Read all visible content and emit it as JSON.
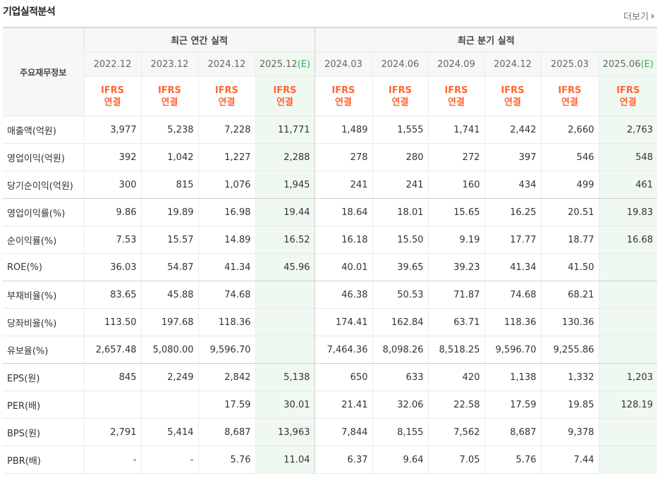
{
  "header": {
    "title": "기업실적분석",
    "more_label": "더보기"
  },
  "table": {
    "row_header": "주요재무정보",
    "groups": {
      "annual": "최근 연간 실적",
      "quarterly": "최근 분기 실적"
    },
    "periods": [
      {
        "label": "2022.12",
        "est": ""
      },
      {
        "label": "2023.12",
        "est": ""
      },
      {
        "label": "2024.12",
        "est": ""
      },
      {
        "label": "2025.12",
        "est": "(E)"
      },
      {
        "label": "2024.03",
        "est": ""
      },
      {
        "label": "2024.06",
        "est": ""
      },
      {
        "label": "2024.09",
        "est": ""
      },
      {
        "label": "2024.12",
        "est": ""
      },
      {
        "label": "2025.03",
        "est": ""
      },
      {
        "label": "2025.06",
        "est": "(E)"
      }
    ],
    "ifrs": {
      "line1": "IFRS",
      "line2": "연결"
    },
    "rows": [
      {
        "label": "매출액(억원)",
        "cells": [
          "3,977",
          "5,238",
          "7,228",
          "11,771",
          "1,489",
          "1,555",
          "1,741",
          "2,442",
          "2,660",
          "2,763"
        ]
      },
      {
        "label": "영업이익(억원)",
        "cells": [
          "392",
          "1,042",
          "1,227",
          "2,288",
          "278",
          "280",
          "272",
          "397",
          "546",
          "548"
        ]
      },
      {
        "label": "당기순이익(억원)",
        "cells": [
          "300",
          "815",
          "1,076",
          "1,945",
          "241",
          "241",
          "160",
          "434",
          "499",
          "461"
        ]
      },
      {
        "label": "영업이익률(%)",
        "cells": [
          "9.86",
          "19.89",
          "16.98",
          "19.44",
          "18.64",
          "18.01",
          "15.65",
          "16.25",
          "20.51",
          "19.83"
        ]
      },
      {
        "label": "순이익률(%)",
        "cells": [
          "7.53",
          "15.57",
          "14.89",
          "16.52",
          "16.18",
          "15.50",
          "9.19",
          "17.77",
          "18.77",
          "16.68"
        ]
      },
      {
        "label": "ROE(%)",
        "cells": [
          "36.03",
          "54.87",
          "41.34",
          "45.96",
          "40.01",
          "39.65",
          "39.23",
          "41.34",
          "41.50",
          ""
        ]
      },
      {
        "label": "부채비율(%)",
        "cells": [
          "83.65",
          "45.88",
          "74.68",
          "",
          "46.38",
          "50.53",
          "71.87",
          "74.68",
          "68.21",
          ""
        ]
      },
      {
        "label": "당좌비율(%)",
        "cells": [
          "113.50",
          "197.68",
          "118.36",
          "",
          "174.41",
          "162.84",
          "63.71",
          "118.36",
          "130.36",
          ""
        ]
      },
      {
        "label": "유보율(%)",
        "cells": [
          "2,657.48",
          "5,080.00",
          "9,596.70",
          "",
          "7,464.36",
          "8,098.26",
          "8,518.25",
          "9,596.70",
          "9,255.86",
          ""
        ]
      },
      {
        "label": "EPS(원)",
        "cells": [
          "845",
          "2,249",
          "2,842",
          "5,138",
          "650",
          "633",
          "420",
          "1,138",
          "1,332",
          "1,203"
        ]
      },
      {
        "label": "PER(배)",
        "cells": [
          "",
          "",
          "17.59",
          "30.01",
          "21.41",
          "32.06",
          "22.58",
          "17.59",
          "19.85",
          "128.19"
        ]
      },
      {
        "label": "BPS(원)",
        "cells": [
          "2,791",
          "5,414",
          "8,687",
          "13,963",
          "7,844",
          "8,155",
          "7,562",
          "8,687",
          "9,378",
          ""
        ]
      },
      {
        "label": "PBR(배)",
        "cells": [
          "-",
          "-",
          "5.76",
          "11.04",
          "6.37",
          "9.64",
          "7.05",
          "5.76",
          "7.44",
          ""
        ]
      }
    ]
  }
}
